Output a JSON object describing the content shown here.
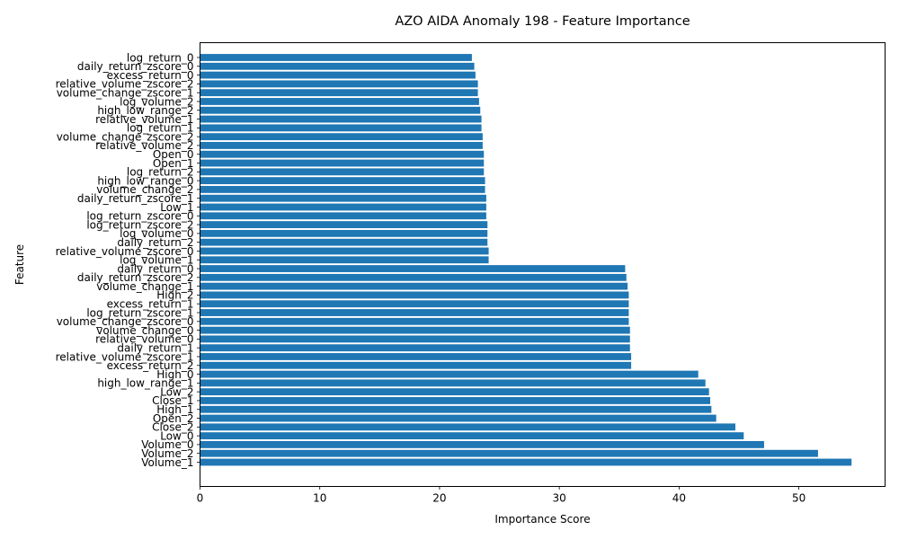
{
  "chart_data": {
    "type": "bar",
    "orientation": "horizontal",
    "title": "AZO AIDA Anomaly 198 - Feature Importance",
    "xlabel": "Importance Score",
    "ylabel": "Feature",
    "xlim": [
      0,
      57.2
    ],
    "xticks": [
      0,
      10,
      20,
      30,
      40,
      50
    ],
    "grid": false,
    "legend": "none",
    "bar_color": "#1f77b4",
    "categories": [
      "log_return_0",
      "daily_return_zscore_0",
      "excess_return_0",
      "relative_volume_zscore_2",
      "volume_change_zscore_1",
      "log_volume_2",
      "high_low_range_2",
      "relative_volume_1",
      "log_return_1",
      "volume_change_zscore_2",
      "relative_volume_2",
      "Open_0",
      "Open_1",
      "log_return_2",
      "high_low_range_0",
      "volume_change_2",
      "daily_return_zscore_1",
      "Low_1",
      "log_return_zscore_0",
      "log_return_zscore_2",
      "log_volume_0",
      "daily_return_2",
      "relative_volume_zscore_0",
      "log_volume_1",
      "daily_return_0",
      "daily_return_zscore_2",
      "volume_change_1",
      "High_2",
      "excess_return_1",
      "log_return_zscore_1",
      "volume_change_zscore_0",
      "volume_change_0",
      "relative_volume_0",
      "daily_return_1",
      "relative_volume_zscore_1",
      "excess_return_2",
      "High_0",
      "high_low_range_1",
      "Low_2",
      "Close_1",
      "High_1",
      "Open_2",
      "Close_2",
      "Low_0",
      "Volume_0",
      "Volume_2",
      "Volume_1"
    ],
    "values": [
      22.7,
      22.9,
      23.0,
      23.2,
      23.2,
      23.3,
      23.4,
      23.5,
      23.5,
      23.6,
      23.6,
      23.7,
      23.7,
      23.7,
      23.8,
      23.8,
      23.9,
      23.9,
      23.9,
      24.0,
      24.0,
      24.0,
      24.1,
      24.1,
      35.5,
      35.6,
      35.7,
      35.8,
      35.8,
      35.8,
      35.8,
      35.9,
      35.9,
      35.9,
      36.0,
      36.0,
      41.6,
      42.2,
      42.5,
      42.6,
      42.7,
      43.1,
      44.7,
      45.4,
      47.1,
      51.6,
      54.4
    ]
  }
}
